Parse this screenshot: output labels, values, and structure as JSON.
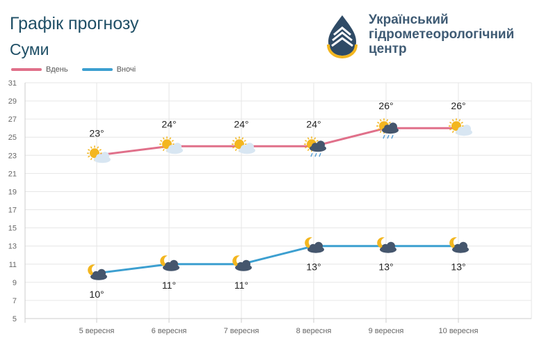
{
  "header": {
    "title": "Графік прогнозу",
    "city": "Суми",
    "org_lines": [
      "Український",
      "гідрометеорологічний",
      "центр"
    ]
  },
  "legend": {
    "day_label": "Вдень",
    "night_label": "Вночі"
  },
  "colors": {
    "day": "#e0708a",
    "night": "#3c9fd0",
    "sun": "#f3b61f",
    "cloud": "#d8e6f2",
    "dark_cloud": "#45566d",
    "moon": "#f3b61f"
  },
  "chart_data": {
    "type": "line",
    "categories": [
      "5 вересня",
      "6 вересня",
      "7 вересня",
      "8 вересня",
      "9 вересня",
      "10 вересня"
    ],
    "series": [
      {
        "name": "Вдень",
        "values": [
          23,
          24,
          24,
          24,
          26,
          26
        ],
        "labels": [
          "23°",
          "24°",
          "24°",
          "24°",
          "26°",
          "26°"
        ],
        "icons": [
          "sun-cloud-icon",
          "sun-cloud-icon",
          "sun-cloud-icon",
          "sun-rain-icon",
          "sun-rain-icon",
          "sun-cloud-icon"
        ]
      },
      {
        "name": "Вночі",
        "values": [
          10,
          11,
          11,
          13,
          13,
          13
        ],
        "labels": [
          "10°",
          "11°",
          "11°",
          "13°",
          "13°",
          "13°"
        ],
        "icons": [
          "moon-cloud-icon",
          "moon-cloud-icon",
          "moon-cloud-icon",
          "moon-cloud-icon",
          "moon-cloud-icon",
          "moon-cloud-icon"
        ]
      }
    ],
    "yticks": [
      "31",
      "29",
      "27",
      "25",
      "23",
      "21",
      "19",
      "17",
      "15",
      "13",
      "11",
      "9",
      "7",
      "5"
    ],
    "ylim": [
      5,
      31
    ],
    "grid": true
  }
}
